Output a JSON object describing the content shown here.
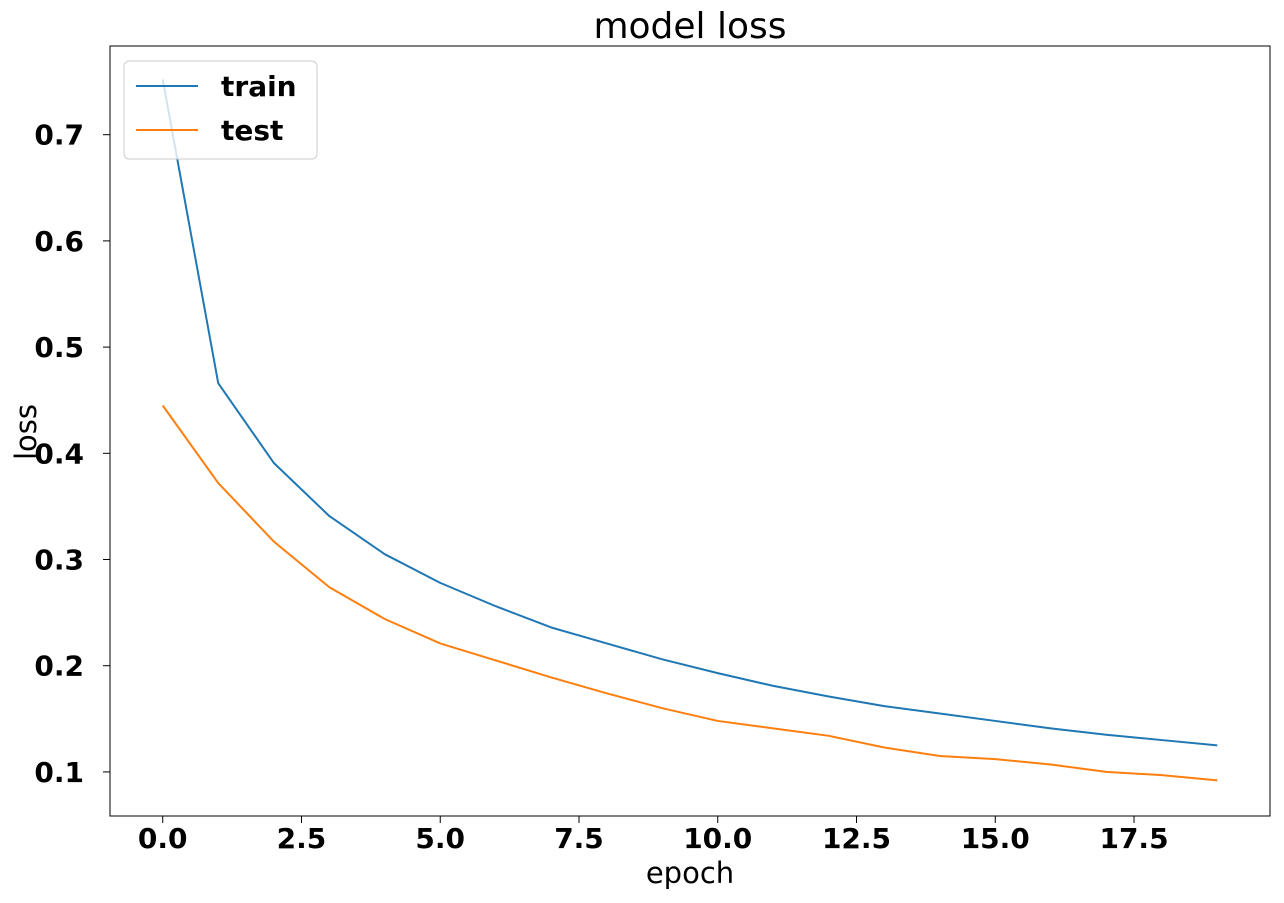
{
  "chart_data": {
    "type": "line",
    "title": "model loss",
    "xlabel": "epoch",
    "ylabel": "loss",
    "x": [
      0,
      1,
      2,
      3,
      4,
      5,
      6,
      7,
      8,
      9,
      10,
      11,
      12,
      13,
      14,
      15,
      16,
      17,
      18,
      19
    ],
    "xlim": [
      -0.95,
      19.95
    ],
    "ylim": [
      0.0585,
      0.7835
    ],
    "xticks": [
      0.0,
      2.5,
      5.0,
      7.5,
      10.0,
      12.5,
      15.0,
      17.5
    ],
    "xtick_labels": [
      "0.0",
      "2.5",
      "5.0",
      "7.5",
      "10.0",
      "12.5",
      "15.0",
      "17.5"
    ],
    "yticks": [
      0.1,
      0.2,
      0.3,
      0.4,
      0.5,
      0.6,
      0.7
    ],
    "ytick_labels": [
      "0.1",
      "0.2",
      "0.3",
      "0.4",
      "0.5",
      "0.6",
      "0.7"
    ],
    "series": [
      {
        "name": "train",
        "color": "#1f77b4",
        "values": [
          0.752,
          0.466,
          0.391,
          0.341,
          0.305,
          0.278,
          0.256,
          0.236,
          0.221,
          0.206,
          0.193,
          0.181,
          0.171,
          0.162,
          0.155,
          0.148,
          0.141,
          0.135,
          0.13,
          0.125
        ]
      },
      {
        "name": "test",
        "color": "#ff7f0e",
        "values": [
          0.445,
          0.372,
          0.317,
          0.274,
          0.244,
          0.221,
          0.205,
          0.189,
          0.174,
          0.16,
          0.148,
          0.141,
          0.134,
          0.123,
          0.115,
          0.112,
          0.107,
          0.1,
          0.097,
          0.092
        ]
      }
    ],
    "grid": false,
    "legend_position": "upper-left"
  }
}
